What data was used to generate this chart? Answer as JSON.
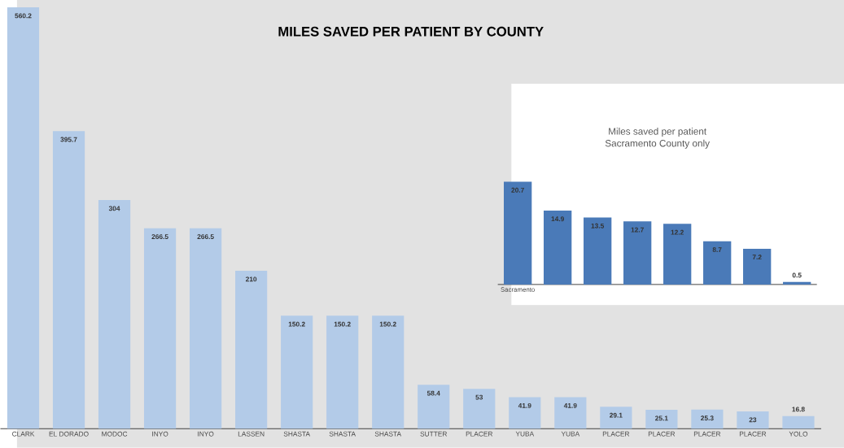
{
  "chart_data": [
    {
      "type": "bar",
      "title": "MILES SAVED PER PATIENT BY COUNTY",
      "categories": [
        "CLARK",
        "EL DORADO",
        "MODOC",
        "INYO",
        "INYO",
        "LASSEN",
        "SHASTA",
        "SHASTA",
        "SHASTA",
        "SUTTER",
        "PLACER",
        "YUBA",
        "YUBA",
        "PLACER",
        "PLACER",
        "PLACER",
        "PLACER",
        "YOLO"
      ],
      "values": [
        560.2,
        395.7,
        304,
        266.5,
        266.5,
        210,
        150.2,
        150.2,
        150.2,
        58.4,
        53,
        41.9,
        41.9,
        29.1,
        25.1,
        25.3,
        23,
        16.8
      ],
      "color": "#b3cbe8",
      "ylim": [
        0,
        570
      ],
      "tick_labels": "x",
      "data_labels": true
    },
    {
      "type": "bar",
      "title": "Miles saved per patient",
      "subtitle": "Sacramento County only",
      "categories": [
        "Sacramento",
        null,
        null,
        null,
        null,
        null,
        null,
        null
      ],
      "values": [
        20.7,
        14.9,
        13.5,
        12.7,
        12.2,
        8.7,
        7.2,
        0.5
      ],
      "color": "#4a7ab8",
      "data_labels": true
    }
  ]
}
